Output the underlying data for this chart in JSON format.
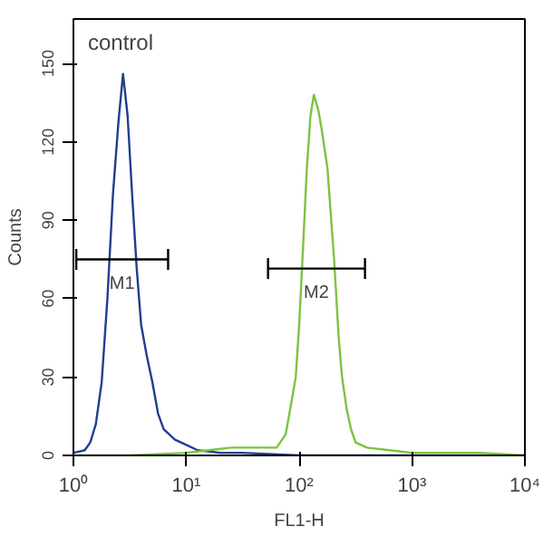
{
  "chart_data": {
    "type": "line",
    "xlabel": "FL1-H",
    "ylabel": "Counts",
    "log": "x",
    "grid": false,
    "xlim": [
      1,
      10000
    ],
    "xticks": [
      {
        "value": 1,
        "label": "10⁰"
      },
      {
        "value": 10,
        "label": "10¹"
      },
      {
        "value": 100,
        "label": "10²"
      },
      {
        "value": 1000,
        "label": "10³"
      },
      {
        "value": 10000,
        "label": "10⁴"
      }
    ],
    "ylim": [
      0,
      167
    ],
    "yticks": [
      0,
      30,
      60,
      90,
      120,
      150
    ],
    "annotations": [
      "control",
      {
        "text": "M1",
        "x": 2.7,
        "y": 75
      },
      {
        "text": "M2",
        "x": 142,
        "y": 71.5
      }
    ],
    "series": [
      {
        "color": "#1f3f8f",
        "x": [
          1,
          1.26,
          1.41,
          1.58,
          1.78,
          2.0,
          2.24,
          2.51,
          2.75,
          3.02,
          3.31,
          3.63,
          3.98,
          4.47,
          5.01,
          5.62,
          6.31,
          7.94,
          10,
          12.6,
          20,
          31.6,
          100,
          1000,
          10000
        ],
        "values": [
          1,
          2,
          5,
          12,
          28,
          60,
          100,
          128,
          146,
          130,
          100,
          72,
          50,
          38,
          28,
          16,
          10,
          6,
          4,
          2,
          1,
          1,
          0,
          0,
          0
        ]
      },
      {
        "color": "#7dc242",
        "x": [
          1,
          3.16,
          10,
          15.8,
          25.1,
          39.8,
          63.1,
          75.9,
          85.1,
          93.3,
          100,
          107,
          117,
          126,
          135,
          148,
          158,
          178,
          204,
          224,
          240,
          263,
          288,
          316,
          398,
          631,
          1000,
          1995,
          3981,
          10000
        ],
        "values": [
          0,
          0,
          1,
          2,
          3,
          3,
          3,
          8,
          20,
          30,
          50,
          75,
          110,
          130,
          138,
          132,
          125,
          110,
          75,
          45,
          30,
          18,
          10,
          5,
          3,
          2,
          1,
          1,
          1,
          0
        ]
      },
      {
        "color": "#000000",
        "x": [
          1.06,
          6.9
        ],
        "values": [
          75,
          75
        ],
        "errors": [
          4,
          4
        ]
      },
      {
        "color": "#000000",
        "x": [
          53,
          383
        ],
        "values": [
          71.5,
          71.5
        ],
        "errors": [
          4,
          4
        ]
      }
    ]
  }
}
